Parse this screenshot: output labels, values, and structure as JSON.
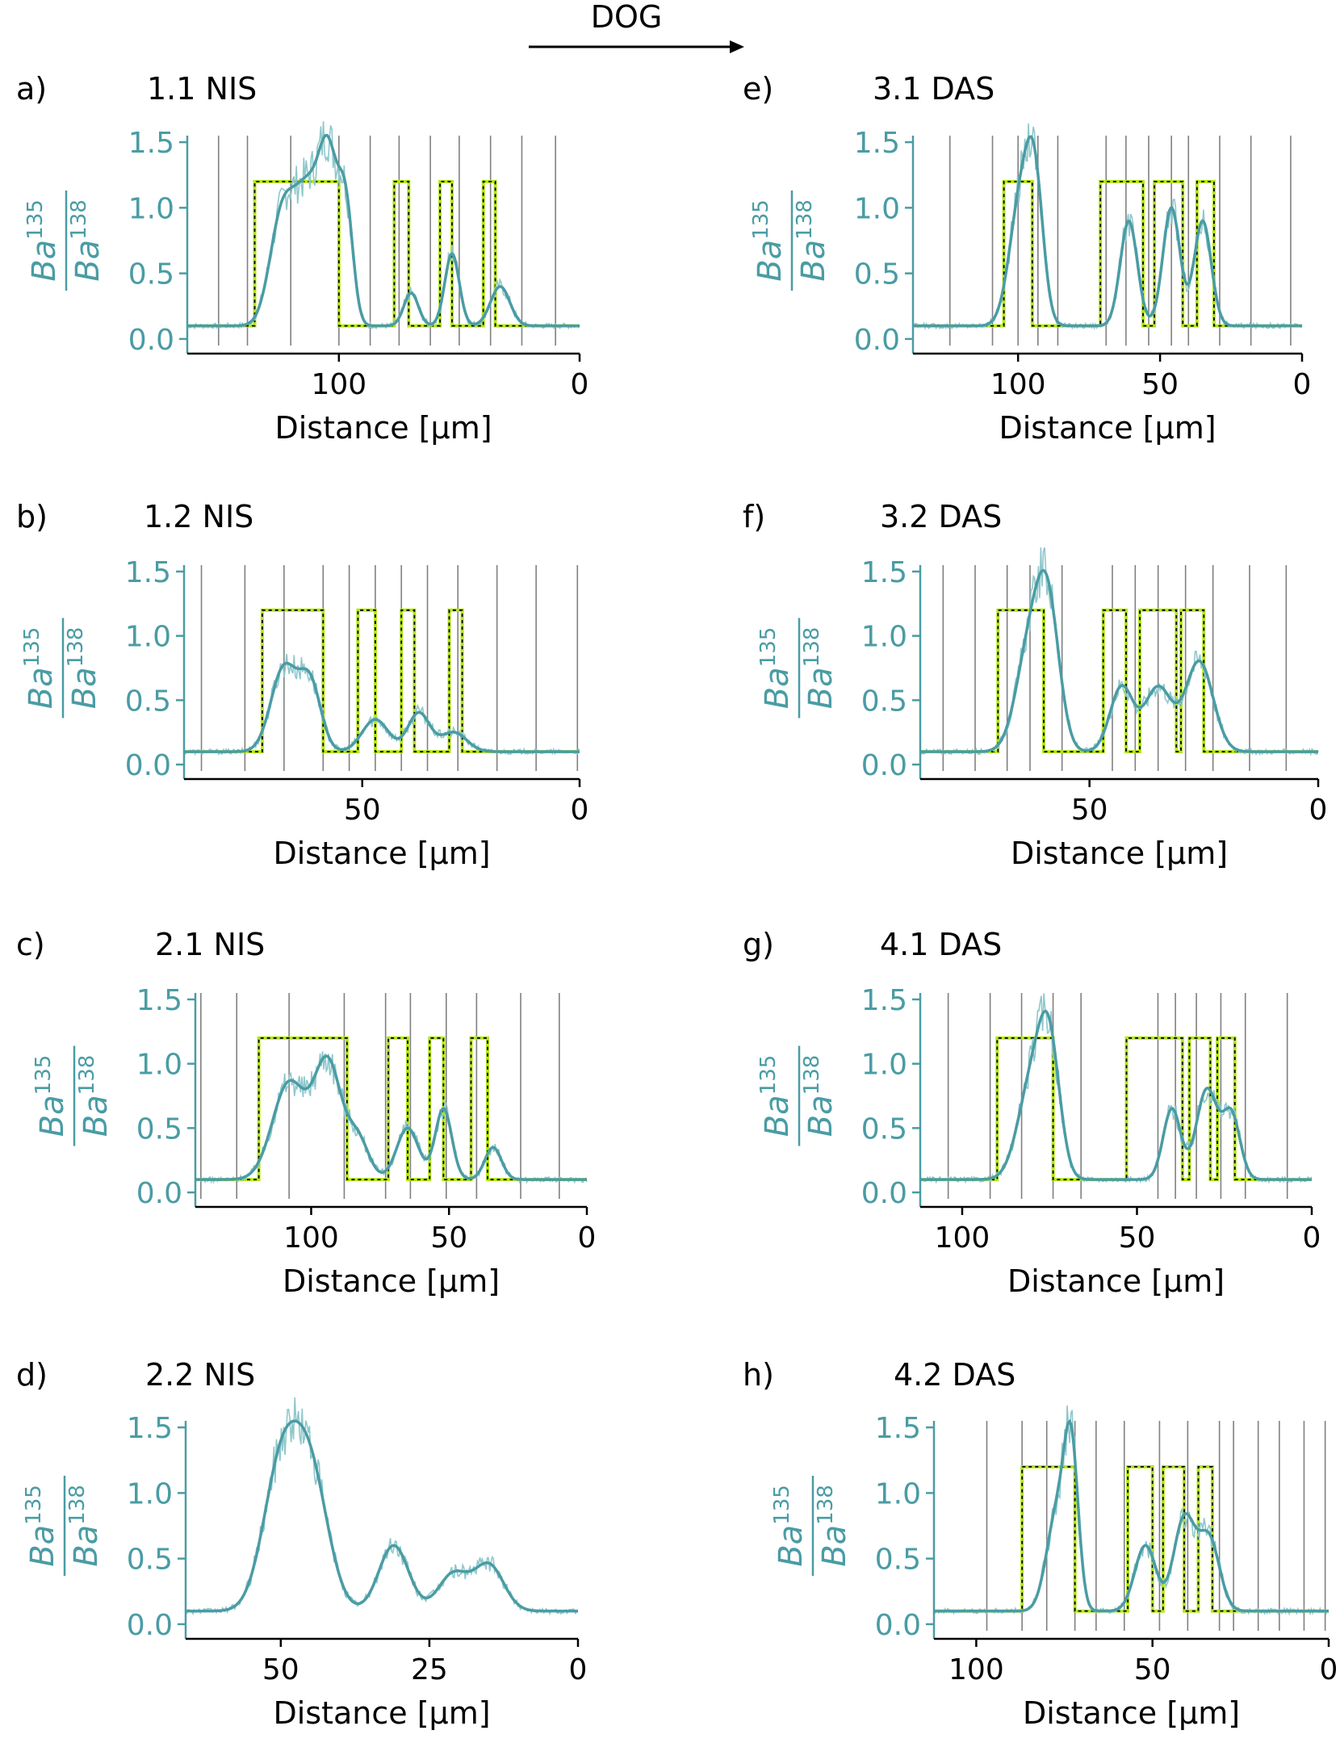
{
  "figure": {
    "arrow_label": "DOG",
    "ylabel_base": "Ba",
    "ylabel_num_sup": "135",
    "ylabel_den_sup": "138",
    "xlabel": "Distance [μm]",
    "colors": {
      "signal": "#4a9ca4",
      "signal_raw": "#8fc7cb",
      "model": "#b5e61d",
      "model_dash": "#000000",
      "vline": "#808080",
      "axis_left": "#4a9ca4",
      "axis_bottom": "#000000",
      "text": "#000000"
    }
  },
  "chart_data": [
    {
      "panel": "a)",
      "title": "1.1 NIS",
      "type": "line",
      "xlim": [
        163,
        0
      ],
      "ylim": [
        -0.05,
        1.55
      ],
      "xticks": [
        100,
        0
      ],
      "yticks": [
        0.0,
        0.5,
        1.0,
        1.5
      ],
      "xticklabels": [
        "100",
        "0"
      ],
      "yticklabels": [
        "0.0",
        "0.5",
        "1.0",
        "1.5"
      ],
      "vlines": [
        150,
        138,
        120,
        100,
        87,
        75,
        62,
        50,
        37,
        24,
        10
      ],
      "model_intervals": [
        [
          135,
          100
        ],
        [
          77,
          71
        ],
        [
          58,
          53
        ],
        [
          40,
          35
        ]
      ],
      "baseline": 0.1,
      "high": 1.2,
      "peaks": [
        [
          124,
          0.85,
          5
        ],
        [
          113,
          1.1,
          6
        ],
        [
          104,
          1.15,
          4
        ],
        [
          97,
          0.9,
          3
        ],
        [
          70,
          0.35,
          3
        ],
        [
          53,
          0.65,
          3
        ],
        [
          33,
          0.4,
          4
        ]
      ]
    },
    {
      "panel": "b)",
      "title": "1.2 NIS",
      "type": "line",
      "xlim": [
        91,
        0
      ],
      "ylim": [
        -0.05,
        1.55
      ],
      "xticks": [
        50,
        0
      ],
      "yticks": [
        0.0,
        0.5,
        1.0,
        1.5
      ],
      "xticklabels": [
        "50",
        "0"
      ],
      "yticklabels": [
        "0.0",
        "0.5",
        "1.0",
        "1.5"
      ],
      "vlines": [
        87,
        77,
        68,
        59,
        53,
        47,
        41,
        35,
        28,
        19,
        10,
        0.5
      ],
      "model_intervals": [
        [
          73,
          59
        ],
        [
          51,
          47
        ],
        [
          41,
          38
        ],
        [
          30,
          27
        ]
      ],
      "baseline": 0.1,
      "high": 1.2,
      "peaks": [
        [
          68,
          0.75,
          3
        ],
        [
          62,
          0.62,
          2.5
        ],
        [
          47,
          0.35,
          3
        ],
        [
          37,
          0.4,
          2.5
        ],
        [
          29,
          0.25,
          3
        ]
      ]
    },
    {
      "panel": "c)",
      "title": "2.1 NIS",
      "type": "line",
      "xlim": [
        142,
        0
      ],
      "ylim": [
        -0.05,
        1.55
      ],
      "xticks": [
        100,
        50,
        0
      ],
      "yticks": [
        0.0,
        0.5,
        1.0,
        1.5
      ],
      "xticklabels": [
        "100",
        "50",
        "0"
      ],
      "yticklabels": [
        "0.0",
        "0.5",
        "1.0",
        "1.5"
      ],
      "vlines": [
        140,
        127,
        108,
        88,
        73,
        64,
        51,
        40,
        24,
        10
      ],
      "model_intervals": [
        [
          119,
          87
        ],
        [
          72,
          65
        ],
        [
          57,
          52
        ],
        [
          42,
          36
        ]
      ],
      "baseline": 0.1,
      "high": 1.2,
      "peaks": [
        [
          108,
          0.85,
          6
        ],
        [
          94,
          1.0,
          5
        ],
        [
          83,
          0.4,
          4
        ],
        [
          65,
          0.5,
          4
        ],
        [
          52,
          0.65,
          3
        ],
        [
          34,
          0.35,
          3
        ]
      ]
    },
    {
      "panel": "d)",
      "title": "2.2 NIS",
      "type": "line",
      "xlim": [
        66,
        0
      ],
      "ylim": [
        -0.05,
        1.55
      ],
      "xticks": [
        50,
        25,
        0
      ],
      "yticks": [
        0.0,
        0.5,
        1.0,
        1.5
      ],
      "xticklabels": [
        "50",
        "25",
        "0"
      ],
      "yticklabels": [
        "0.0",
        "0.5",
        "1.0",
        "1.5"
      ],
      "vlines": [],
      "model_intervals": [],
      "baseline": 0.1,
      "high": 1.2,
      "peaks": [
        [
          50,
          1.15,
          3
        ],
        [
          45,
          1.1,
          3
        ],
        [
          31,
          0.6,
          2.5
        ],
        [
          21,
          0.38,
          2.5
        ],
        [
          15,
          0.45,
          2.5
        ]
      ]
    },
    {
      "panel": "e)",
      "title": "3.1 DAS",
      "type": "line",
      "xlim": [
        137,
        0
      ],
      "ylim": [
        -0.05,
        1.55
      ],
      "xticks": [
        100,
        50,
        0
      ],
      "yticks": [
        0.0,
        0.5,
        1.0,
        1.5
      ],
      "xticklabels": [
        "100",
        "50",
        "0"
      ],
      "yticklabels": [
        "0.0",
        "0.5",
        "1.0",
        "1.5"
      ],
      "vlines": [
        124,
        109,
        100,
        93,
        86,
        69,
        62,
        54,
        46,
        40,
        29,
        18,
        4
      ],
      "model_intervals": [
        [
          105,
          95
        ],
        [
          71,
          56
        ],
        [
          52,
          42
        ],
        [
          37,
          31
        ]
      ],
      "baseline": 0.1,
      "high": 1.2,
      "peaks": [
        [
          99,
          1.05,
          4
        ],
        [
          94,
          1.0,
          3
        ],
        [
          61,
          0.9,
          3
        ],
        [
          46,
          1.0,
          3
        ],
        [
          35,
          0.9,
          3
        ]
      ]
    },
    {
      "panel": "f)",
      "title": "3.2 DAS",
      "type": "line",
      "xlim": [
        87,
        0
      ],
      "ylim": [
        -0.05,
        1.55
      ],
      "xticks": [
        50,
        0
      ],
      "yticks": [
        0.0,
        0.5,
        1.0,
        1.5
      ],
      "xticklabels": [
        "50",
        "0"
      ],
      "yticklabels": [
        "0.0",
        "0.5",
        "1.0",
        "1.5"
      ],
      "vlines": [
        82,
        75,
        68,
        63,
        56,
        45,
        40,
        35,
        29,
        23,
        15,
        7
      ],
      "model_intervals": [
        [
          70,
          60
        ],
        [
          47,
          42
        ],
        [
          39,
          31
        ],
        [
          30,
          25
        ]
      ],
      "baseline": 0.1,
      "high": 1.2,
      "peaks": [
        [
          63,
          0.9,
          3
        ],
        [
          59,
          1.1,
          2.5
        ],
        [
          43,
          0.6,
          2.5
        ],
        [
          35,
          0.6,
          3
        ],
        [
          26,
          0.8,
          3
        ]
      ]
    },
    {
      "panel": "g)",
      "title": "4.1 DAS",
      "type": "line",
      "xlim": [
        112,
        0
      ],
      "ylim": [
        -0.05,
        1.55
      ],
      "xticks": [
        100,
        50,
        0
      ],
      "yticks": [
        0.0,
        0.5,
        1.0,
        1.5
      ],
      "xticklabels": [
        "100",
        "50",
        "0"
      ],
      "yticklabels": [
        "0.0",
        "0.5",
        "1.0",
        "1.5"
      ],
      "vlines": [
        104,
        92,
        83,
        74,
        66,
        44,
        39,
        33,
        26,
        19,
        7
      ],
      "model_intervals": [
        [
          90,
          74
        ],
        [
          53,
          37
        ],
        [
          35,
          29
        ],
        [
          27,
          22
        ]
      ],
      "baseline": 0.1,
      "high": 1.2,
      "peaks": [
        [
          80,
          0.85,
          4
        ],
        [
          75,
          1.0,
          3
        ],
        [
          40,
          0.65,
          2.5
        ],
        [
          30,
          0.8,
          3
        ],
        [
          23,
          0.6,
          2.5
        ]
      ]
    },
    {
      "panel": "h)",
      "title": "4.2 DAS",
      "type": "line",
      "xlim": [
        112,
        0
      ],
      "ylim": [
        -0.05,
        1.55
      ],
      "xticks": [
        100,
        50,
        0
      ],
      "yticks": [
        0.0,
        0.5,
        1.0,
        1.5
      ],
      "xticklabels": [
        "100",
        "50",
        "0"
      ],
      "yticklabels": [
        "0.0",
        "0.5",
        "1.0",
        "1.5"
      ],
      "vlines": [
        97,
        87,
        80,
        72,
        66,
        58,
        48,
        40,
        31,
        27,
        20,
        14,
        7,
        1
      ],
      "model_intervals": [
        [
          87,
          72
        ],
        [
          57,
          50
        ],
        [
          47,
          41
        ],
        [
          37,
          33
        ]
      ],
      "baseline": 0.1,
      "high": 1.2,
      "peaks": [
        [
          77,
          0.85,
          3
        ],
        [
          73,
          1.2,
          2
        ],
        [
          52,
          0.6,
          3
        ],
        [
          41,
          0.8,
          3
        ],
        [
          34,
          0.65,
          3
        ]
      ]
    }
  ]
}
